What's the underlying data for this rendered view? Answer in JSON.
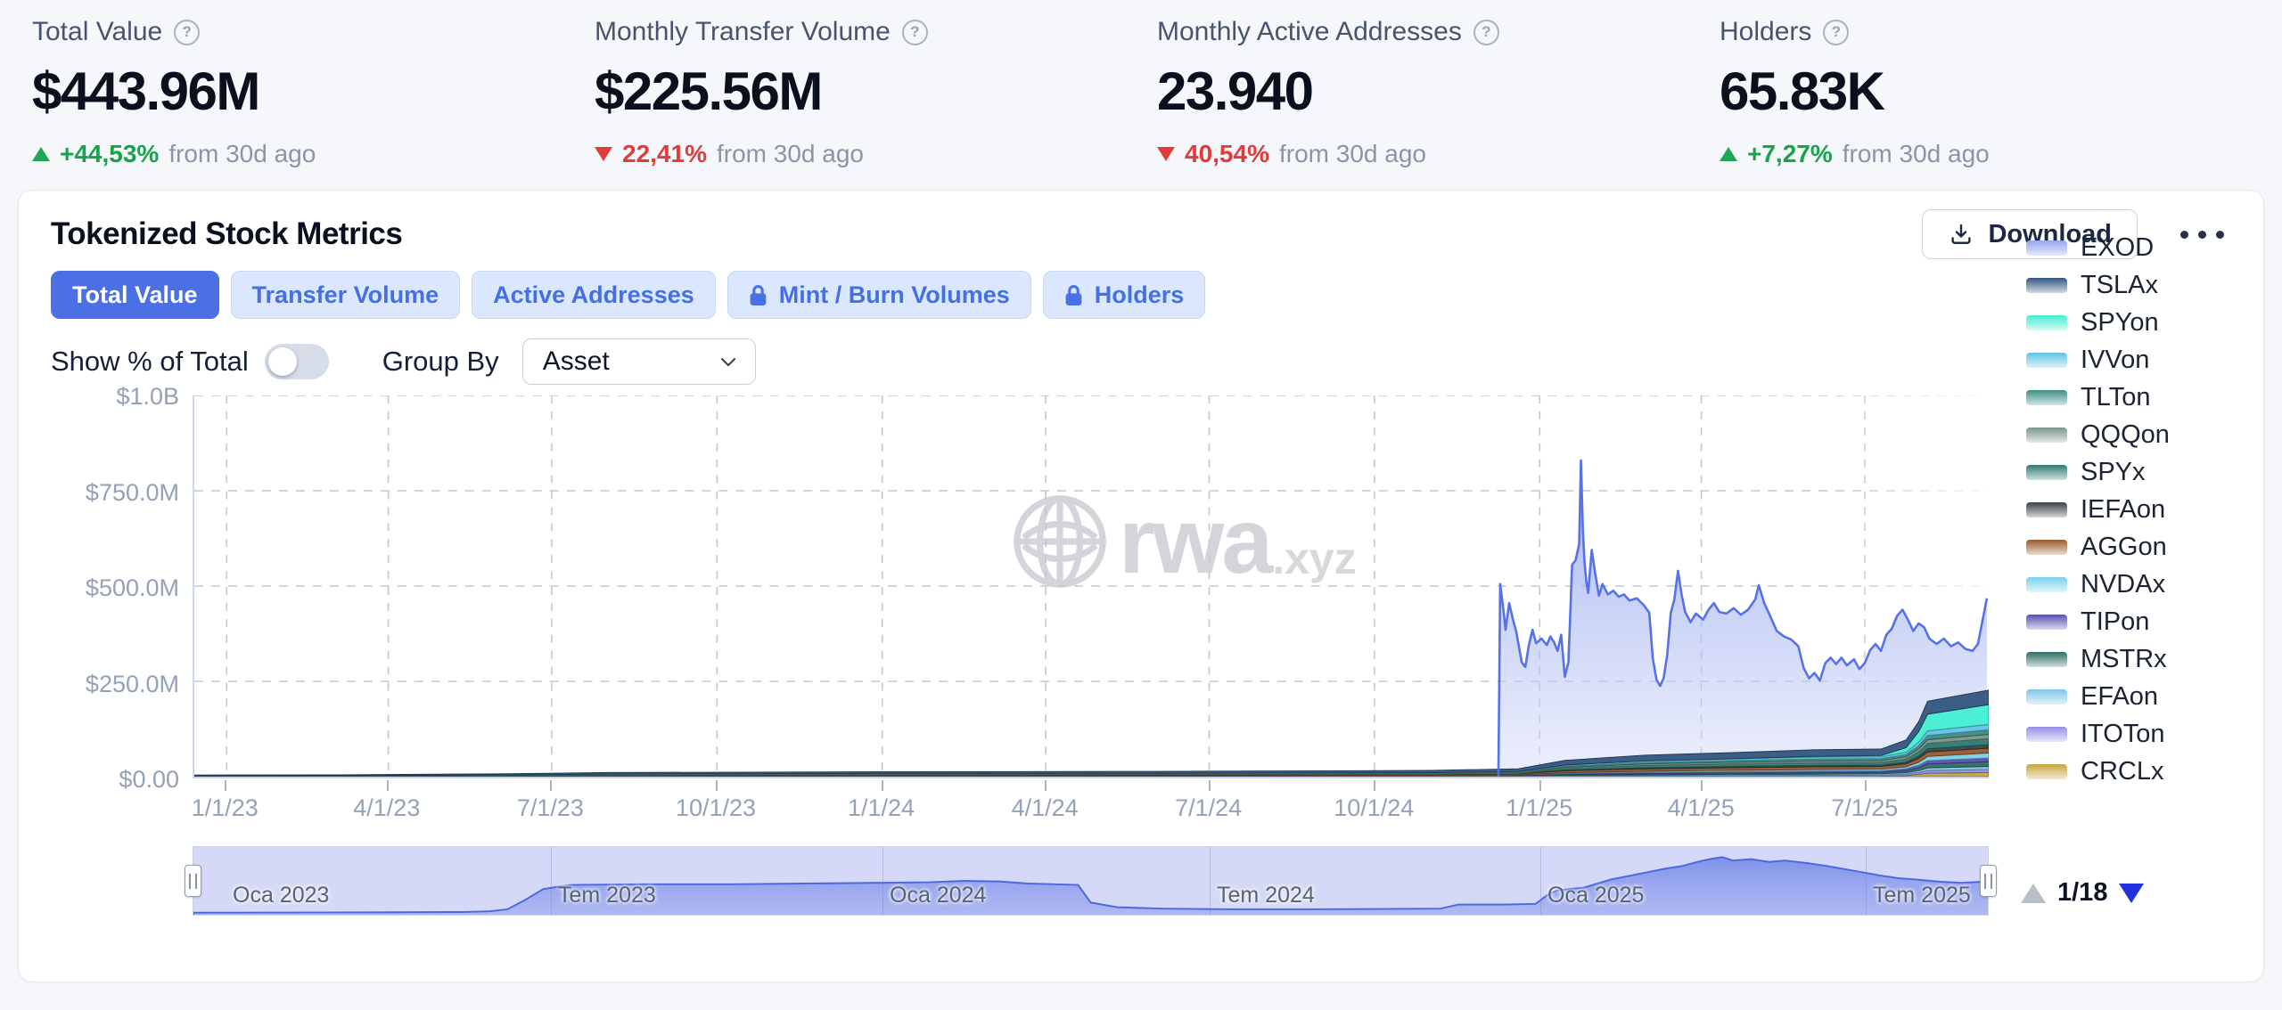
{
  "icons": {
    "help": "?"
  },
  "kpis": [
    {
      "label": "Total Value",
      "value": "$443.96M",
      "delta": {
        "direction": "up",
        "pct": "+44,53%",
        "suffix": "from 30d ago"
      }
    },
    {
      "label": "Monthly Transfer Volume",
      "value": "$225.56M",
      "delta": {
        "direction": "down",
        "pct": "22,41%",
        "suffix": "from 30d ago"
      }
    },
    {
      "label": "Monthly Active Addresses",
      "value": "23.940",
      "delta": {
        "direction": "down",
        "pct": "40,54%",
        "suffix": "from 30d ago"
      }
    },
    {
      "label": "Holders",
      "value": "65.83K",
      "delta": {
        "direction": "up",
        "pct": "+7,27%",
        "suffix": "from 30d ago"
      }
    }
  ],
  "card": {
    "title": "Tokenized Stock Metrics",
    "download_label": "Download"
  },
  "tabs": [
    {
      "label": "Total Value",
      "active": true,
      "locked": false
    },
    {
      "label": "Transfer Volume",
      "active": false,
      "locked": false
    },
    {
      "label": "Active Addresses",
      "active": false,
      "locked": false
    },
    {
      "label": "Mint / Burn Volumes",
      "active": false,
      "locked": true
    },
    {
      "label": "Holders",
      "active": false,
      "locked": true
    }
  ],
  "controls": {
    "toggle_label": "Show % of Total",
    "toggle_on": false,
    "group_by_label": "Group By",
    "group_by_value": "Asset"
  },
  "legend": {
    "pagination": "1/18"
  },
  "chart_data": {
    "type": "area",
    "stacked": true,
    "title": "Tokenized Stock Metrics — Total Value",
    "unit": "USD (millions)",
    "ylim_m": [
      0,
      1000
    ],
    "y_ticks": [
      "$1.0B",
      "$750.0M",
      "$500.0M",
      "$250.0M",
      "$0.00"
    ],
    "y_tick_values_m": [
      1000,
      750,
      500,
      250,
      0
    ],
    "x_ticks": [
      "1/1/23",
      "4/1/23",
      "7/1/23",
      "10/1/23",
      "1/1/24",
      "4/1/24",
      "7/1/24",
      "10/1/24",
      "1/1/25",
      "4/1/25",
      "7/1/25"
    ],
    "x_tick_dates": [
      "2023-01-01",
      "2023-04-01",
      "2023-07-01",
      "2023-10-01",
      "2024-01-01",
      "2024-04-01",
      "2024-07-01",
      "2024-10-01",
      "2025-01-01",
      "2025-04-01",
      "2025-07-01"
    ],
    "x_domain": [
      "2022-12-14",
      "2025-09-08"
    ],
    "grid": true,
    "legend_position": "right",
    "watermark": {
      "main": "rwa",
      "suffix": ".xyz"
    },
    "accent_color": "#4b6fe4",
    "small_series_dates": [
      "2022-12-14",
      "2023-03-01",
      "2023-06-01",
      "2023-08-01",
      "2024-01-01",
      "2024-06-01",
      "2024-11-01",
      "2024-12-20",
      "2025-01-15",
      "2025-03-01",
      "2025-04-15",
      "2025-06-01",
      "2025-07-10",
      "2025-07-24",
      "2025-07-31",
      "2025-08-05",
      "2025-09-08"
    ],
    "series": [
      {
        "name": "EXOD",
        "color": "#94a4f0",
        "points": [
          [
            "2024-12-09",
            0
          ],
          [
            "2024-12-10",
            505
          ],
          [
            "2024-12-12",
            430
          ],
          [
            "2024-12-13",
            385
          ],
          [
            "2024-12-15",
            455
          ],
          [
            "2024-12-17",
            415
          ],
          [
            "2024-12-19",
            380
          ],
          [
            "2024-12-22",
            300
          ],
          [
            "2024-12-24",
            288
          ],
          [
            "2024-12-26",
            345
          ],
          [
            "2024-12-28",
            385
          ],
          [
            "2024-12-30",
            350
          ],
          [
            "2025-01-02",
            362
          ],
          [
            "2025-01-05",
            345
          ],
          [
            "2025-01-07",
            368
          ],
          [
            "2025-01-09",
            352
          ],
          [
            "2025-01-11",
            330
          ],
          [
            "2025-01-13",
            372
          ],
          [
            "2025-01-15",
            262
          ],
          [
            "2025-01-17",
            300
          ],
          [
            "2025-01-18",
            420
          ],
          [
            "2025-01-19",
            555
          ],
          [
            "2025-01-21",
            568
          ],
          [
            "2025-01-23",
            610
          ],
          [
            "2025-01-24",
            830
          ],
          [
            "2025-01-25",
            650
          ],
          [
            "2025-01-26",
            560
          ],
          [
            "2025-01-27",
            510
          ],
          [
            "2025-01-28",
            482
          ],
          [
            "2025-01-30",
            595
          ],
          [
            "2025-02-01",
            530
          ],
          [
            "2025-02-03",
            475
          ],
          [
            "2025-02-05",
            505
          ],
          [
            "2025-02-08",
            478
          ],
          [
            "2025-02-11",
            488
          ],
          [
            "2025-02-14",
            472
          ],
          [
            "2025-02-17",
            478
          ],
          [
            "2025-02-20",
            462
          ],
          [
            "2025-02-24",
            468
          ],
          [
            "2025-02-28",
            450
          ],
          [
            "2025-03-03",
            430
          ],
          [
            "2025-03-05",
            310
          ],
          [
            "2025-03-07",
            255
          ],
          [
            "2025-03-09",
            238
          ],
          [
            "2025-03-11",
            258
          ],
          [
            "2025-03-13",
            320
          ],
          [
            "2025-03-15",
            430
          ],
          [
            "2025-03-17",
            465
          ],
          [
            "2025-03-19",
            540
          ],
          [
            "2025-03-21",
            478
          ],
          [
            "2025-03-23",
            432
          ],
          [
            "2025-03-26",
            405
          ],
          [
            "2025-03-29",
            428
          ],
          [
            "2025-04-02",
            412
          ],
          [
            "2025-04-05",
            438
          ],
          [
            "2025-04-08",
            455
          ],
          [
            "2025-04-11",
            432
          ],
          [
            "2025-04-15",
            428
          ],
          [
            "2025-04-19",
            442
          ],
          [
            "2025-04-23",
            425
          ],
          [
            "2025-04-27",
            438
          ],
          [
            "2025-05-01",
            465
          ],
          [
            "2025-05-03",
            502
          ],
          [
            "2025-05-06",
            455
          ],
          [
            "2025-05-09",
            425
          ],
          [
            "2025-05-13",
            382
          ],
          [
            "2025-05-17",
            368
          ],
          [
            "2025-05-21",
            360
          ],
          [
            "2025-05-25",
            342
          ],
          [
            "2025-05-28",
            285
          ],
          [
            "2025-05-31",
            258
          ],
          [
            "2025-06-03",
            272
          ],
          [
            "2025-06-06",
            252
          ],
          [
            "2025-06-09",
            298
          ],
          [
            "2025-06-12",
            312
          ],
          [
            "2025-06-15",
            295
          ],
          [
            "2025-06-18",
            312
          ],
          [
            "2025-06-21",
            292
          ],
          [
            "2025-06-25",
            308
          ],
          [
            "2025-06-28",
            282
          ],
          [
            "2025-07-01",
            298
          ],
          [
            "2025-07-04",
            332
          ],
          [
            "2025-07-07",
            348
          ],
          [
            "2025-07-10",
            330
          ],
          [
            "2025-07-13",
            372
          ],
          [
            "2025-07-16",
            388
          ],
          [
            "2025-07-19",
            422
          ],
          [
            "2025-07-22",
            438
          ],
          [
            "2025-07-25",
            412
          ],
          [
            "2025-07-28",
            382
          ],
          [
            "2025-07-31",
            402
          ],
          [
            "2025-08-03",
            392
          ],
          [
            "2025-08-06",
            362
          ],
          [
            "2025-08-10",
            348
          ],
          [
            "2025-08-14",
            362
          ],
          [
            "2025-08-18",
            342
          ],
          [
            "2025-08-22",
            352
          ],
          [
            "2025-08-26",
            335
          ],
          [
            "2025-08-30",
            330
          ],
          [
            "2025-09-02",
            348
          ],
          [
            "2025-09-05",
            420
          ],
          [
            "2025-09-07",
            468
          ]
        ]
      },
      {
        "name": "TSLAx",
        "color": "#33567f",
        "values": [
          2.0,
          2.2,
          3.0,
          4.0,
          4.5,
          5.0,
          6.0,
          7.0,
          12,
          15,
          16,
          17,
          17,
          20,
          26,
          34,
          38
        ]
      },
      {
        "name": "SPYon",
        "color": "#43eed2",
        "values": [
          0,
          0,
          0,
          0,
          0,
          0,
          0,
          0,
          0,
          0,
          0,
          2,
          3,
          12,
          28,
          44,
          52
        ]
      },
      {
        "name": "IVVon",
        "color": "#62c4e6",
        "values": [
          0.3,
          0.3,
          0.5,
          0.8,
          1,
          1,
          1.2,
          1.5,
          3,
          4,
          4.5,
          5,
          5,
          6,
          9,
          12,
          14
        ]
      },
      {
        "name": "TLTon",
        "color": "#3d8d82",
        "values": [
          0.3,
          0.3,
          0.5,
          0.8,
          1,
          1,
          1.2,
          1.5,
          3,
          4,
          4.5,
          5,
          5,
          6,
          8,
          11,
          12
        ]
      },
      {
        "name": "QQQon",
        "color": "#7b958c",
        "values": [
          0.3,
          0.3,
          0.5,
          0.8,
          1,
          1,
          1.2,
          1.5,
          3,
          4,
          4.5,
          5,
          5,
          6,
          8,
          10,
          11
        ]
      },
      {
        "name": "SPYx",
        "color": "#2e7a6e",
        "values": [
          0,
          0,
          0,
          0,
          0,
          0,
          0,
          0.5,
          4,
          6,
          6.5,
          7,
          7,
          8,
          11,
          14,
          16
        ]
      },
      {
        "name": "IEFAon",
        "color": "#3c4248",
        "values": [
          0.2,
          0.2,
          0.4,
          0.6,
          0.8,
          1,
          1,
          1.2,
          2,
          3,
          3.2,
          3.5,
          3.5,
          4,
          6,
          8,
          9
        ]
      },
      {
        "name": "AGGon",
        "color": "#9a5a2c",
        "values": [
          0.5,
          0.7,
          1.2,
          1.8,
          2,
          2.2,
          2.5,
          3,
          5,
          6,
          6.5,
          7,
          7,
          8,
          10,
          12,
          13
        ]
      },
      {
        "name": "NVDAx",
        "color": "#79d2ea",
        "values": [
          0,
          0,
          0,
          0,
          0,
          0,
          0,
          0.3,
          2,
          3,
          3.5,
          4,
          4,
          5,
          8,
          11,
          13
        ]
      },
      {
        "name": "TIPon",
        "color": "#5a4fb2",
        "values": [
          0.3,
          0.3,
          0.5,
          0.7,
          0.9,
          1,
          1.1,
          1.3,
          2.5,
          3.5,
          4,
          4.5,
          4.5,
          5,
          7,
          9,
          10
        ]
      },
      {
        "name": "MSTRx",
        "color": "#2f6e64",
        "values": [
          0,
          0,
          0,
          0,
          0,
          0,
          0,
          0.3,
          2,
          3,
          3.3,
          3.8,
          4,
          5,
          7,
          10,
          12
        ]
      },
      {
        "name": "EFAon",
        "color": "#7fc6e8",
        "values": [
          0.2,
          0.2,
          0.4,
          0.6,
          0.8,
          0.8,
          1,
          1.2,
          2,
          2.5,
          3,
          3.2,
          3.2,
          4,
          5,
          7,
          8
        ]
      },
      {
        "name": "ITOTon",
        "color": "#988ee8",
        "values": [
          0.2,
          0.2,
          0.4,
          0.6,
          0.8,
          0.8,
          1,
          1.2,
          2,
          2.5,
          3,
          3.2,
          3.2,
          4,
          5,
          7,
          8
        ]
      },
      {
        "name": "CRCLx",
        "color": "#c7a53c",
        "values": [
          0,
          0,
          0,
          0,
          0,
          0,
          0,
          0,
          0,
          0,
          0,
          0,
          1,
          3,
          6,
          9,
          11
        ]
      }
    ],
    "minimap": {
      "labels": [
        "Oca 2023",
        "Tem 2023",
        "Oca 2024",
        "Tem 2024",
        "Oca 2025",
        "Tem 2025"
      ],
      "label_dates": [
        "2023-01-01",
        "2023-07-01",
        "2024-01-01",
        "2024-07-01",
        "2025-01-01",
        "2025-07-01"
      ],
      "points": [
        [
          0,
          3
        ],
        [
          0.1,
          3.5
        ],
        [
          0.15,
          4
        ],
        [
          0.165,
          5
        ],
        [
          0.175,
          8
        ],
        [
          0.185,
          22
        ],
        [
          0.195,
          38
        ],
        [
          0.21,
          44
        ],
        [
          0.25,
          45
        ],
        [
          0.3,
          45
        ],
        [
          0.34,
          46
        ],
        [
          0.38,
          47
        ],
        [
          0.41,
          48
        ],
        [
          0.43,
          50
        ],
        [
          0.45,
          49
        ],
        [
          0.465,
          46
        ],
        [
          0.48,
          45
        ],
        [
          0.493,
          44
        ],
        [
          0.5,
          18
        ],
        [
          0.515,
          11
        ],
        [
          0.54,
          9
        ],
        [
          0.58,
          8
        ],
        [
          0.62,
          8
        ],
        [
          0.66,
          8.5
        ],
        [
          0.695,
          9
        ],
        [
          0.705,
          15
        ],
        [
          0.73,
          15
        ],
        [
          0.748,
          16
        ],
        [
          0.755,
          30
        ],
        [
          0.76,
          36
        ],
        [
          0.775,
          40
        ],
        [
          0.79,
          52
        ],
        [
          0.805,
          60
        ],
        [
          0.82,
          68
        ],
        [
          0.83,
          72
        ],
        [
          0.838,
          78
        ],
        [
          0.845,
          82
        ],
        [
          0.852,
          85
        ],
        [
          0.858,
          80
        ],
        [
          0.868,
          82
        ],
        [
          0.878,
          78
        ],
        [
          0.887,
          80
        ],
        [
          0.9,
          76
        ],
        [
          0.91,
          72
        ],
        [
          0.925,
          65
        ],
        [
          0.94,
          58
        ],
        [
          0.95,
          54
        ],
        [
          0.96,
          52
        ],
        [
          0.972,
          49
        ],
        [
          0.985,
          47
        ],
        [
          1,
          49
        ]
      ]
    }
  }
}
